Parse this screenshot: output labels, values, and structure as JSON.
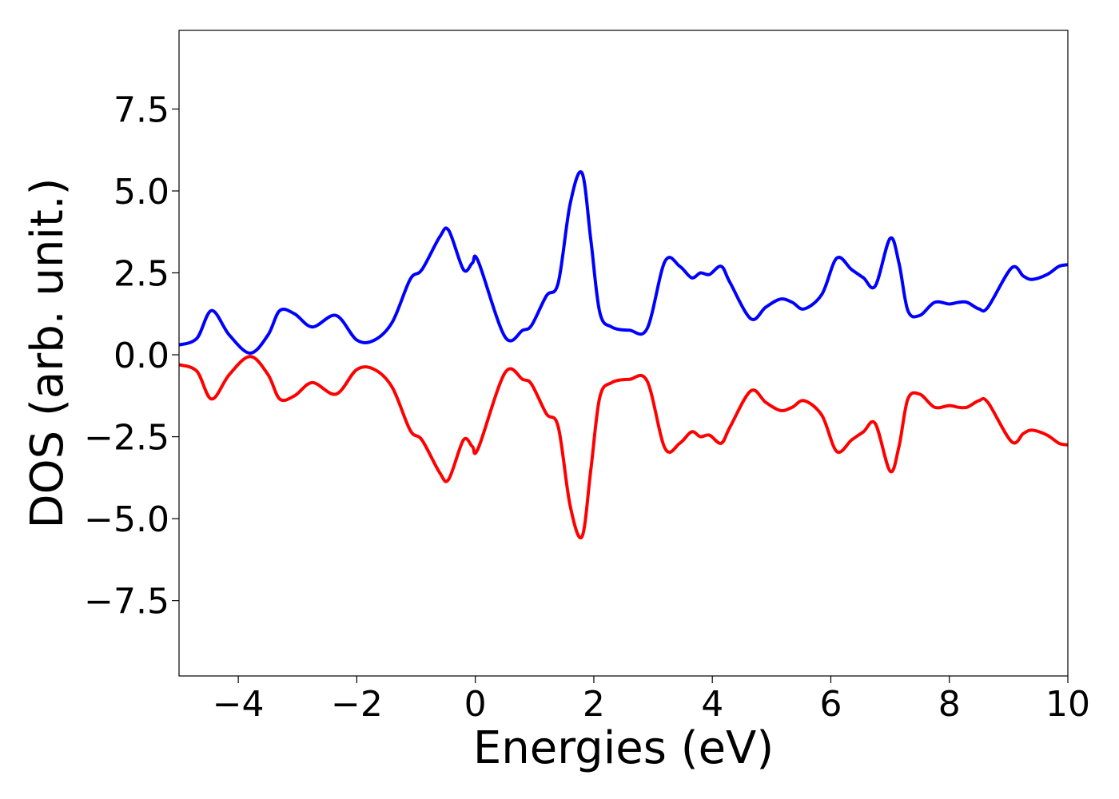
{
  "chart_data": {
    "type": "line",
    "title": "",
    "xlabel": "Energies (eV)",
    "ylabel": "DOS (arb. unit.)",
    "xlim": [
      -5,
      10
    ],
    "ylim": [
      -9.8,
      9.9
    ],
    "xticks": [
      -4,
      -2,
      0,
      2,
      4,
      6,
      8,
      10
    ],
    "xtick_labels": [
      "−4",
      "−2",
      "0",
      "2",
      "4",
      "6",
      "8",
      "10"
    ],
    "yticks": [
      7.5,
      5.0,
      2.5,
      0.0,
      -2.5,
      -5.0,
      -7.5
    ],
    "ytick_labels": [
      "7.5",
      "5.0",
      "2.5",
      "0.0",
      "−2.5",
      "−5.0",
      "−7.5"
    ],
    "grid": false,
    "legend": "none",
    "series": [
      {
        "color": "#0000ff",
        "x": [
          -5.0,
          -4.7,
          -4.45,
          -4.15,
          -3.8,
          -3.5,
          -3.3,
          -3.05,
          -2.75,
          -2.35,
          -2.0,
          -1.7,
          -1.4,
          -1.1,
          -0.9,
          -0.6,
          -0.45,
          -0.2,
          -0.05,
          0.05,
          0.5,
          0.8,
          0.95,
          1.2,
          1.4,
          1.6,
          1.8,
          1.95,
          2.1,
          2.3,
          2.6,
          2.9,
          3.2,
          3.45,
          3.65,
          3.8,
          3.95,
          4.15,
          4.3,
          4.65,
          4.9,
          5.15,
          5.35,
          5.55,
          5.85,
          6.1,
          6.35,
          6.55,
          6.75,
          7.0,
          7.15,
          7.3,
          7.5,
          7.75,
          8.0,
          8.15,
          8.3,
          8.5,
          8.65,
          9.05,
          9.25,
          9.4,
          9.65,
          9.85,
          10.0
        ],
        "y": [
          0.3,
          0.5,
          1.35,
          0.6,
          0.05,
          0.6,
          1.35,
          1.25,
          0.85,
          1.2,
          0.45,
          0.45,
          1.0,
          2.3,
          2.6,
          3.6,
          3.8,
          2.6,
          2.8,
          2.85,
          0.55,
          0.75,
          0.9,
          1.8,
          2.2,
          4.6,
          5.55,
          3.5,
          1.3,
          0.85,
          0.75,
          0.8,
          2.85,
          2.7,
          2.35,
          2.5,
          2.45,
          2.7,
          2.2,
          1.1,
          1.45,
          1.7,
          1.6,
          1.4,
          1.85,
          2.95,
          2.6,
          2.35,
          2.1,
          3.55,
          2.8,
          1.35,
          1.2,
          1.6,
          1.55,
          1.6,
          1.6,
          1.4,
          1.45,
          2.65,
          2.4,
          2.3,
          2.45,
          2.7,
          2.75
        ]
      },
      {
        "color": "#ff0000",
        "x": [
          -5.0,
          -4.7,
          -4.45,
          -4.15,
          -3.8,
          -3.5,
          -3.3,
          -3.05,
          -2.75,
          -2.35,
          -2.0,
          -1.7,
          -1.4,
          -1.1,
          -0.9,
          -0.6,
          -0.45,
          -0.2,
          -0.05,
          0.05,
          0.5,
          0.8,
          0.95,
          1.2,
          1.4,
          1.6,
          1.8,
          1.95,
          2.1,
          2.3,
          2.6,
          2.9,
          3.2,
          3.45,
          3.65,
          3.8,
          3.95,
          4.15,
          4.3,
          4.65,
          4.9,
          5.15,
          5.35,
          5.55,
          5.85,
          6.1,
          6.35,
          6.55,
          6.75,
          7.0,
          7.15,
          7.3,
          7.5,
          7.75,
          8.0,
          8.15,
          8.3,
          8.5,
          8.65,
          9.05,
          9.25,
          9.4,
          9.65,
          9.85,
          10.0
        ],
        "y": [
          -0.3,
          -0.5,
          -1.35,
          -0.6,
          -0.05,
          -0.6,
          -1.35,
          -1.25,
          -0.85,
          -1.2,
          -0.45,
          -0.45,
          -1.0,
          -2.3,
          -2.6,
          -3.6,
          -3.8,
          -2.6,
          -2.8,
          -2.85,
          -0.55,
          -0.75,
          -0.9,
          -1.8,
          -2.2,
          -4.6,
          -5.55,
          -3.5,
          -1.3,
          -0.85,
          -0.75,
          -0.8,
          -2.85,
          -2.7,
          -2.35,
          -2.5,
          -2.45,
          -2.7,
          -2.2,
          -1.1,
          -1.45,
          -1.7,
          -1.6,
          -1.4,
          -1.85,
          -2.95,
          -2.6,
          -2.35,
          -2.1,
          -3.55,
          -2.8,
          -1.35,
          -1.2,
          -1.6,
          -1.55,
          -1.6,
          -1.6,
          -1.4,
          -1.45,
          -2.65,
          -2.4,
          -2.3,
          -2.45,
          -2.7,
          -2.75
        ]
      }
    ]
  }
}
